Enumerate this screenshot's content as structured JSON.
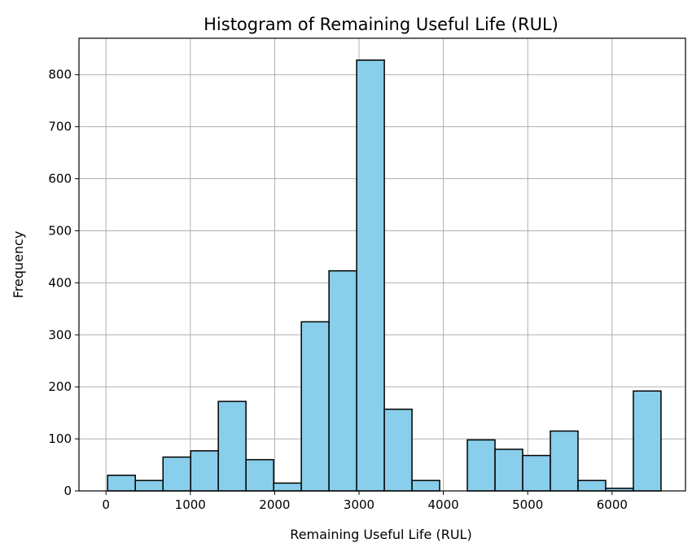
{
  "chart_data": {
    "type": "bar",
    "title": "Histogram of Remaining Useful Life (RUL)",
    "xlabel": "Remaining Useful Life (RUL)",
    "ylabel": "Frequency",
    "xlim": [
      -320,
      6870
    ],
    "ylim": [
      0,
      870
    ],
    "x_ticks": [
      0,
      1000,
      2000,
      3000,
      4000,
      5000,
      6000
    ],
    "y_ticks": [
      0,
      100,
      200,
      300,
      400,
      500,
      600,
      700,
      800
    ],
    "bin_start": 20,
    "bin_width": 328,
    "values": [
      30,
      20,
      65,
      77,
      172,
      60,
      15,
      325,
      423,
      828,
      157,
      20,
      0,
      98,
      80,
      68,
      115,
      20,
      5,
      192
    ],
    "grid": true,
    "bar_color": "#89ceea",
    "edge_color": "#000000"
  }
}
